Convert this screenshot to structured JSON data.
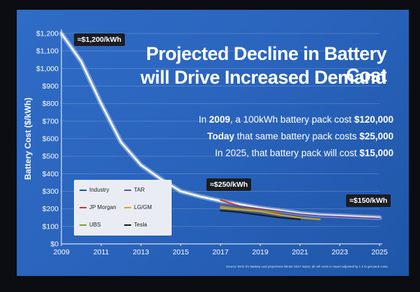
{
  "title_lines": [
    "Projected Decline in Battery Cost",
    "will Drive Increased Demand"
  ],
  "info": [
    {
      "pre": "In ",
      "b1": "2009",
      "mid": ", a 100kWh battery pack cost ",
      "b2": "$120,000"
    },
    {
      "pre": "",
      "b1": "Today",
      "mid": " that same battery pack costs ",
      "b2": "$25,000"
    },
    {
      "pre": "In 2025, that battery pack will cost ",
      "b1": "",
      "mid": "",
      "b2": "$15,000"
    }
  ],
  "callouts": {
    "start": "≈$1,200/kWh",
    "mid": "≈$250/kWh",
    "end": "≈$150/kWh"
  },
  "source_note": "Source: BCG EV Battery cost projections Winter 2017 report, all cell costs in report adjusted by 1.4 to get pack costs.",
  "colors": {
    "background": "#2a64bd",
    "Industry": "#1f4fa8",
    "TAR": "#6b4c9a",
    "JP Morgan": "#c0392b",
    "LG/GM": "#e0a21b",
    "UBS": "#7c9c3a",
    "Tesla": "#1a1a1a"
  },
  "chart_data": {
    "type": "line",
    "title": "Projected Decline in Battery Cost will Drive Increased Demand",
    "xlabel": "",
    "ylabel": "Battery Cost ($/kWh)",
    "xlim": [
      2009,
      2025
    ],
    "ylim": [
      0,
      1200
    ],
    "xticks": [
      2009,
      2011,
      2013,
      2015,
      2017,
      2019,
      2021,
      2023,
      2025
    ],
    "yticks": [
      0,
      100,
      200,
      300,
      400,
      500,
      600,
      700,
      800,
      900,
      1000,
      1100,
      1200
    ],
    "ytick_labels": [
      "$0",
      "$100",
      "$200",
      "$300",
      "$400",
      "$500",
      "$600",
      "$700",
      "$800",
      "$900",
      "$1,000",
      "$1,100",
      "$1,200"
    ],
    "legend_position": "bottom-left",
    "series": [
      {
        "name": "Industry",
        "x": [
          2009,
          2010,
          2011,
          2012,
          2013,
          2014,
          2015,
          2016,
          2017,
          2018,
          2019,
          2020,
          2021,
          2022,
          2023,
          2024,
          2025
        ],
        "y": [
          1200,
          1040,
          800,
          580,
          450,
          370,
          300,
          270,
          245,
          225,
          205,
          190,
          175,
          165,
          160,
          155,
          150
        ]
      },
      {
        "name": "JP Morgan",
        "x": [
          2017,
          2018,
          2019,
          2020
        ],
        "y": [
          250,
          215,
          195,
          170
        ]
      },
      {
        "name": "UBS",
        "x": [
          2017,
          2018,
          2019,
          2020
        ],
        "y": [
          215,
          200,
          190,
          180
        ]
      },
      {
        "name": "TAR",
        "x": [
          2017,
          2018,
          2019,
          2020,
          2021,
          2022,
          2023,
          2024,
          2025
        ],
        "y": [
          225,
          215,
          200,
          185,
          170,
          160,
          155,
          150,
          145
        ]
      },
      {
        "name": "LG/GM",
        "x": [
          2017,
          2018,
          2019,
          2020,
          2021,
          2022
        ],
        "y": [
          205,
          195,
          185,
          165,
          150,
          140
        ]
      },
      {
        "name": "Tesla",
        "x": [
          2017,
          2018,
          2019,
          2020,
          2021
        ],
        "y": [
          190,
          180,
          165,
          150,
          140
        ]
      }
    ]
  }
}
